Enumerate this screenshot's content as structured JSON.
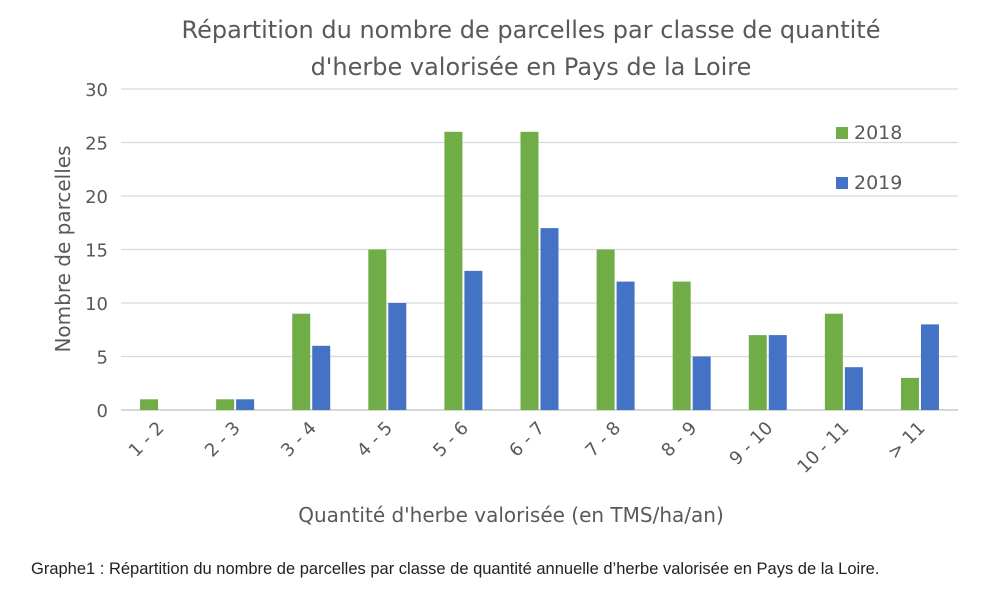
{
  "chart_data": {
    "type": "bar",
    "title_lines": [
      "Répartition du nombre de parcelles  par classe de quantité",
      "d'herbe valorisée en Pays de la Loire"
    ],
    "xlabel": "Quantité d'herbe valorisée (en TMS/ha/an)",
    "ylabel": "Nombre de parcelles",
    "ylim": [
      0,
      30
    ],
    "yticks": [
      0,
      5,
      10,
      15,
      20,
      25,
      30
    ],
    "grid": true,
    "legend_position": "top-right",
    "categories": [
      "1 - 2",
      "2 - 3",
      "3 - 4",
      "4 - 5",
      "5 - 6",
      "6 - 7",
      "7 - 8",
      "8 - 9",
      "9 - 10",
      "10 - 11",
      "> 11"
    ],
    "series": [
      {
        "name": "2018",
        "color": "#70ad47",
        "values": [
          1,
          1,
          9,
          15,
          26,
          26,
          15,
          12,
          7,
          9,
          3
        ]
      },
      {
        "name": "2019",
        "color": "#4472c4",
        "values": [
          0,
          1,
          6,
          10,
          13,
          17,
          12,
          5,
          7,
          4,
          8
        ]
      }
    ]
  },
  "caption": "Graphe1 : Répartition du nombre de parcelles par classe de quantité annuelle d’herbe valorisée en Pays de la Loire."
}
